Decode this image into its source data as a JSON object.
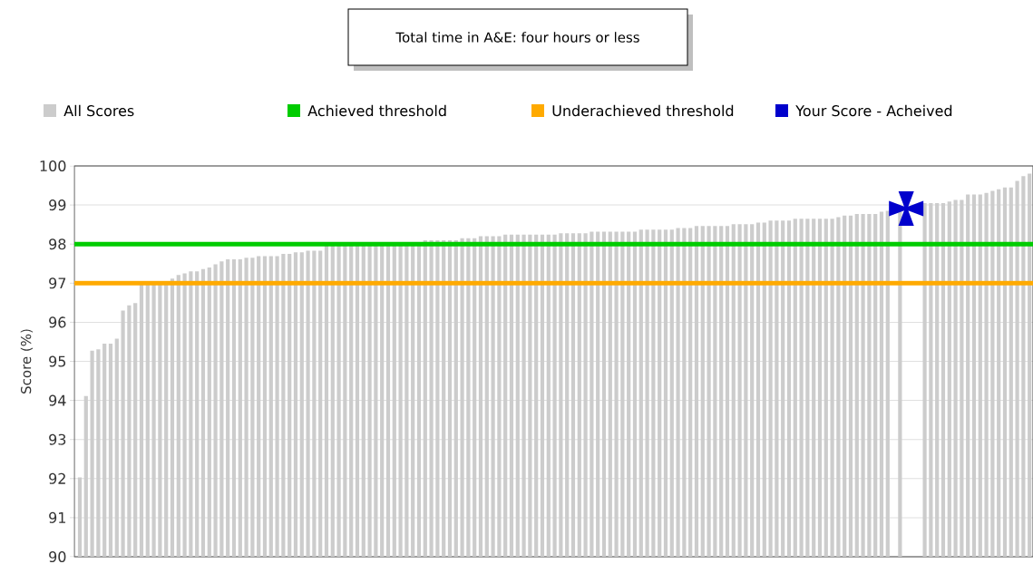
{
  "chart_data": {
    "type": "bar",
    "title": "Total time in A&E: four hours or less",
    "ylabel": "Score (%)",
    "categories": [
      null,
      null,
      null,
      null,
      null,
      null,
      null,
      null,
      null,
      null,
      null,
      null,
      null,
      null,
      null,
      null,
      null,
      null,
      null,
      null,
      null,
      null,
      null,
      null,
      null,
      null,
      null,
      null,
      null,
      null,
      null,
      null,
      null,
      null,
      null,
      null,
      null,
      null,
      null,
      null,
      null,
      null,
      null,
      null,
      null,
      null,
      null,
      null,
      null,
      null,
      null,
      null,
      null,
      null,
      null,
      null,
      null,
      null,
      null,
      null,
      null,
      null,
      null,
      null,
      null,
      null,
      null,
      null,
      null,
      null,
      null,
      null,
      null,
      null,
      null,
      null,
      null,
      null,
      null,
      null,
      null,
      null,
      null,
      null,
      null,
      null,
      null,
      null,
      null,
      null,
      null,
      null,
      null,
      null,
      null,
      null,
      null,
      null,
      null,
      null,
      null,
      null,
      null,
      null,
      null,
      null,
      null,
      null,
      null,
      null,
      null,
      null,
      null,
      null,
      null,
      null,
      null,
      null,
      null,
      null,
      null,
      null,
      null,
      null,
      null,
      null,
      null,
      null,
      null,
      null,
      null,
      null,
      null,
      null,
      null,
      null,
      null,
      null,
      null,
      null,
      null,
      null,
      null,
      null,
      null,
      null,
      null,
      null,
      null,
      null,
      null,
      null,
      null,
      null,
      null
    ],
    "series": [
      {
        "name": "All Scores",
        "color": "#cccccc",
        "values": [
          92.03,
          94.11,
          95.27,
          95.31,
          95.45,
          95.45,
          95.58,
          96.3,
          96.43,
          96.49,
          97.0,
          97.0,
          97.0,
          97.0,
          97.0,
          97.12,
          97.21,
          97.25,
          97.3,
          97.3,
          97.36,
          97.4,
          97.48,
          97.56,
          97.61,
          97.61,
          97.61,
          97.65,
          97.65,
          97.69,
          97.69,
          97.69,
          97.69,
          97.75,
          97.75,
          97.79,
          97.79,
          97.83,
          97.83,
          97.83,
          98.0,
          98.0,
          98.0,
          98.0,
          98.0,
          98.0,
          98.0,
          98.0,
          98.0,
          98.0,
          98.0,
          98.0,
          98.0,
          98.0,
          98.0,
          98.0,
          98.1,
          98.1,
          98.1,
          98.1,
          98.1,
          98.1,
          98.15,
          98.15,
          98.15,
          98.2,
          98.2,
          98.2,
          98.2,
          98.24,
          98.24,
          98.24,
          98.24,
          98.24,
          98.24,
          98.24,
          98.24,
          98.24,
          98.28,
          98.28,
          98.28,
          98.28,
          98.28,
          98.32,
          98.32,
          98.32,
          98.32,
          98.32,
          98.32,
          98.32,
          98.32,
          98.37,
          98.37,
          98.37,
          98.37,
          98.37,
          98.37,
          98.41,
          98.41,
          98.41,
          98.46,
          98.46,
          98.46,
          98.46,
          98.46,
          98.46,
          98.51,
          98.51,
          98.51,
          98.51,
          98.55,
          98.55,
          98.6,
          98.6,
          98.6,
          98.6,
          98.65,
          98.65,
          98.65,
          98.65,
          98.65,
          98.65,
          98.65,
          98.69,
          98.73,
          98.73,
          98.77,
          98.77,
          98.77,
          98.77,
          98.83,
          98.85,
          null,
          98.9,
          null,
          null,
          null,
          99.05,
          99.05,
          99.05,
          99.05,
          99.09,
          99.13,
          99.13,
          99.27,
          99.27,
          99.27,
          99.31,
          99.36,
          99.4,
          99.45,
          99.45,
          99.62,
          99.74,
          99.8
        ]
      },
      {
        "name": "Your Score - Acheived",
        "type": "scatter",
        "color": "#0000cc",
        "marker": "cross",
        "values": [
          null,
          null,
          null,
          null,
          null,
          null,
          null,
          null,
          null,
          null,
          null,
          null,
          null,
          null,
          null,
          null,
          null,
          null,
          null,
          null,
          null,
          null,
          null,
          null,
          null,
          null,
          null,
          null,
          null,
          null,
          null,
          null,
          null,
          null,
          null,
          null,
          null,
          null,
          null,
          null,
          null,
          null,
          null,
          null,
          null,
          null,
          null,
          null,
          null,
          null,
          null,
          null,
          null,
          null,
          null,
          null,
          null,
          null,
          null,
          null,
          null,
          null,
          null,
          null,
          null,
          null,
          null,
          null,
          null,
          null,
          null,
          null,
          null,
          null,
          null,
          null,
          null,
          null,
          null,
          null,
          null,
          null,
          null,
          null,
          null,
          null,
          null,
          null,
          null,
          null,
          null,
          null,
          null,
          null,
          null,
          null,
          null,
          null,
          null,
          null,
          null,
          null,
          null,
          null,
          null,
          null,
          null,
          null,
          null,
          null,
          null,
          null,
          null,
          null,
          null,
          null,
          null,
          null,
          null,
          null,
          null,
          null,
          null,
          null,
          null,
          null,
          null,
          null,
          null,
          null,
          null,
          null,
          null,
          null,
          98.91,
          null,
          null,
          null,
          null,
          null,
          null,
          null,
          null,
          null,
          null,
          null,
          null,
          null,
          null,
          null,
          null,
          null,
          null,
          null,
          null
        ]
      }
    ],
    "ref_lines": [
      {
        "axis": "y",
        "value": 98,
        "label": "Achieved threshold",
        "color": "#00cc00",
        "line_style": "solid"
      },
      {
        "axis": "y",
        "value": 97,
        "label": "Underachieved threshold",
        "color": "#ffaa00",
        "line_style": "solid"
      }
    ],
    "ylim": [
      90,
      100
    ],
    "yticks": [
      90,
      91,
      92,
      93,
      94,
      95,
      96,
      97,
      98,
      99,
      100
    ],
    "grid": "y",
    "legend": "top",
    "tick_labels": "y"
  }
}
